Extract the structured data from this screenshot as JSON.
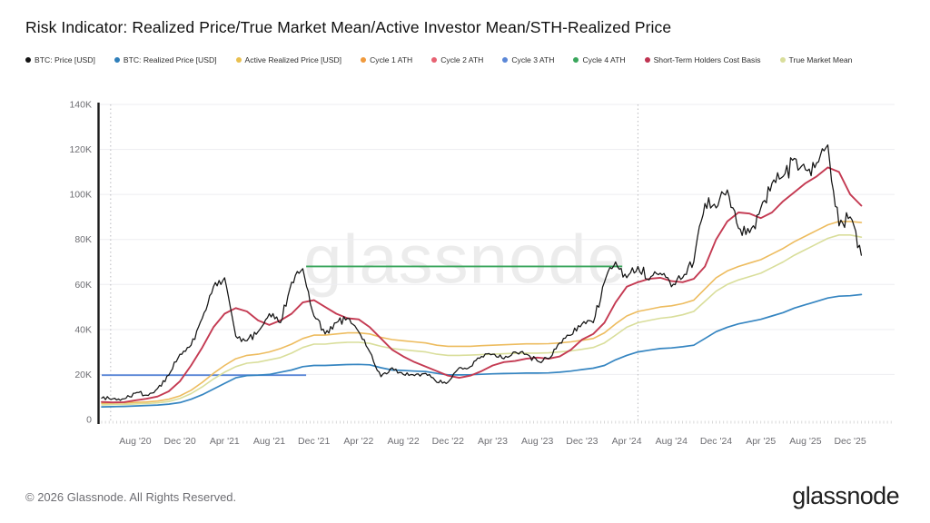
{
  "header": {
    "title": "Risk Indicator: Realized Price/True Market Mean/Active Investor Mean/STH-Realized Price"
  },
  "watermark": "glassnode",
  "footer": {
    "copyright": "© 2026 Glassnode. All Rights Reserved.",
    "logo_text": "glassnode"
  },
  "legend": {
    "items": [
      {
        "label": "BTC: Price [USD]",
        "color": "#141414"
      },
      {
        "label": "BTC: Realized Price [USD]",
        "color": "#2f7fba"
      },
      {
        "label": "Active Realized Price [USD]",
        "color": "#e9c050"
      },
      {
        "label": "Cycle 1 ATH",
        "color": "#f09a3d"
      },
      {
        "label": "Cycle 2 ATH",
        "color": "#e76272"
      },
      {
        "label": "Cycle 3 ATH",
        "color": "#5b87d7"
      },
      {
        "label": "Cycle 4 ATH",
        "color": "#3aa65c"
      },
      {
        "label": "Short-Term Holders Cost Basis",
        "color": "#bf3351"
      },
      {
        "label": "True Market Mean",
        "color": "#d9de9b"
      }
    ]
  },
  "chart_data": {
    "type": "line",
    "title": "Risk Indicator: Realized Price/True Market Mean/Active Investor Mean/STH-Realized Price",
    "value_unit": "USD, values stored in thousands",
    "x_resolution": "monthly",
    "x_start": "May 2020",
    "x_end": "Jan 2026",
    "ylim_thousands": [
      0,
      140
    ],
    "grid": "horizontal",
    "legend_position": "top",
    "y_ticks": [
      {
        "v": 0,
        "label": "0"
      },
      {
        "v": 20,
        "label": "20K"
      },
      {
        "v": 40,
        "label": "40K"
      },
      {
        "v": 60,
        "label": "60K"
      },
      {
        "v": 80,
        "label": "80K"
      },
      {
        "v": 100,
        "label": "100K"
      },
      {
        "v": 120,
        "label": "120K"
      },
      {
        "v": 140,
        "label": "140K"
      }
    ],
    "x_ticks": [
      {
        "i": 3,
        "label": "Aug '20"
      },
      {
        "i": 7,
        "label": "Dec '20"
      },
      {
        "i": 11,
        "label": "Apr '21"
      },
      {
        "i": 15,
        "label": "Aug '21"
      },
      {
        "i": 19,
        "label": "Dec '21"
      },
      {
        "i": 23,
        "label": "Apr '22"
      },
      {
        "i": 27,
        "label": "Aug '22"
      },
      {
        "i": 31,
        "label": "Dec '22"
      },
      {
        "i": 35,
        "label": "Apr '23"
      },
      {
        "i": 39,
        "label": "Aug '23"
      },
      {
        "i": 43,
        "label": "Dec '23"
      },
      {
        "i": 47,
        "label": "Apr '24"
      },
      {
        "i": 51,
        "label": "Aug '24"
      },
      {
        "i": 55,
        "label": "Dec '24"
      },
      {
        "i": 59,
        "label": "Apr '25"
      },
      {
        "i": 63,
        "label": "Aug '25"
      },
      {
        "i": 67,
        "label": "Dec '25"
      }
    ],
    "halving_marker_indices": [
      0.8,
      48
    ],
    "ath_lines": [
      {
        "name": "Cycle 3 ATH",
        "value": 19.7,
        "from": 0,
        "to": 18.3,
        "color": "#5b87d7"
      },
      {
        "name": "Cycle 4 ATH",
        "value": 68,
        "from": 18.3,
        "to": 46.6,
        "color": "#3aa65c"
      }
    ],
    "series": [
      {
        "name": "True Market Mean",
        "color": "#d9de9b",
        "width": 1.6,
        "jagged": false,
        "values": [
          6.5,
          6.6,
          6.7,
          6.9,
          7.1,
          7.4,
          8,
          9.3,
          11.5,
          14.5,
          18,
          21,
          23.5,
          25,
          25.5,
          26.5,
          27.5,
          29.5,
          32,
          33.5,
          33.5,
          34,
          34.3,
          34.3,
          33.8,
          32.5,
          31.5,
          31,
          30.5,
          30,
          29,
          28.5,
          28.5,
          28.6,
          28.8,
          29,
          29.2,
          29.4,
          29.5,
          29.5,
          29.6,
          30,
          30.5,
          31.2,
          32,
          34,
          37.5,
          41,
          43,
          44,
          45,
          45.5,
          46.5,
          48,
          52.5,
          57,
          60,
          62,
          63.5,
          65,
          67.5,
          70,
          73,
          75.5,
          78,
          80.5,
          82,
          82,
          81
        ]
      },
      {
        "name": "Active Realized Price [USD]",
        "color": "#edbc5f",
        "width": 1.6,
        "jagged": false,
        "values": [
          7.2,
          7.3,
          7.4,
          7.6,
          7.8,
          8.2,
          9,
          10.5,
          13,
          16.5,
          20.5,
          24,
          27,
          28.5,
          29,
          30,
          31.5,
          33.5,
          36,
          37.5,
          37.5,
          38,
          38.5,
          38.5,
          38,
          36.5,
          35.5,
          35,
          34.5,
          34,
          33,
          32.5,
          32.5,
          32.5,
          32.8,
          33,
          33.2,
          33.4,
          33.6,
          33.6,
          33.7,
          34,
          34.5,
          35.2,
          36,
          38.5,
          42.5,
          46,
          48,
          49,
          50,
          50.5,
          51.5,
          53,
          58,
          63,
          66,
          68,
          69.5,
          71,
          73.5,
          76,
          79,
          81.5,
          84,
          86.5,
          88,
          88,
          87.5
        ]
      },
      {
        "name": "BTC: Realized Price [USD]",
        "color": "#3585c1",
        "width": 1.7,
        "jagged": false,
        "values": [
          5.6,
          5.7,
          5.8,
          6.0,
          6.2,
          6.4,
          6.8,
          7.5,
          9,
          11,
          13.5,
          16,
          18.5,
          19.5,
          19.7,
          20,
          21,
          22,
          23.5,
          24,
          24,
          24.2,
          24.4,
          24.5,
          24.3,
          23,
          22,
          21.8,
          21.5,
          21.3,
          20.5,
          19.8,
          19.8,
          19.9,
          20.1,
          20.3,
          20.4,
          20.5,
          20.6,
          20.6,
          20.7,
          21,
          21.5,
          22.2,
          22.8,
          24,
          26.5,
          28.5,
          30,
          30.8,
          31.5,
          31.8,
          32.3,
          33,
          36,
          39,
          41,
          42.5,
          43.5,
          44.5,
          46,
          47.5,
          49.5,
          51,
          52.5,
          54,
          54.8,
          55,
          55.5
        ]
      },
      {
        "name": "Short-Term Holders Cost Basis",
        "color": "#c43a52",
        "width": 1.9,
        "jagged": false,
        "values": [
          7.8,
          7.6,
          7.7,
          8.5,
          9.2,
          10.2,
          12.5,
          17,
          24,
          32,
          41,
          47,
          49.5,
          48,
          44,
          42,
          44,
          47,
          52,
          53,
          50,
          47,
          45,
          44.5,
          41,
          36,
          31,
          28,
          25.5,
          23.5,
          21.5,
          19.5,
          18.5,
          19.5,
          21.5,
          24,
          25.5,
          26,
          27,
          27.5,
          27,
          28,
          31,
          35.5,
          38,
          43,
          52,
          59,
          61,
          62.5,
          63,
          61.5,
          61,
          62.5,
          68,
          80,
          88,
          92,
          91.5,
          89.5,
          92,
          97,
          101,
          105,
          108,
          112,
          110,
          100,
          95
        ]
      },
      {
        "name": "BTC: Price [USD]",
        "color": "#141414",
        "width": 1.25,
        "jagged": true,
        "values": [
          9.5,
          9.2,
          9.2,
          11.7,
          10.8,
          13.8,
          19.7,
          29,
          33,
          45,
          59,
          63,
          37,
          35,
          39,
          47,
          43,
          61,
          67,
          46,
          38,
          43,
          45,
          39,
          30,
          19,
          23,
          20,
          19.5,
          20.5,
          16.5,
          16.6,
          23,
          23.5,
          28,
          29,
          27,
          30,
          29,
          26,
          27,
          34,
          37.5,
          42.5,
          43,
          61,
          70,
          63,
          68,
          62,
          65,
          59,
          63,
          70,
          96,
          94,
          102,
          85,
          83,
          94,
          105,
          108,
          116,
          111,
          114,
          122,
          86,
          90,
          73
        ]
      }
    ]
  }
}
